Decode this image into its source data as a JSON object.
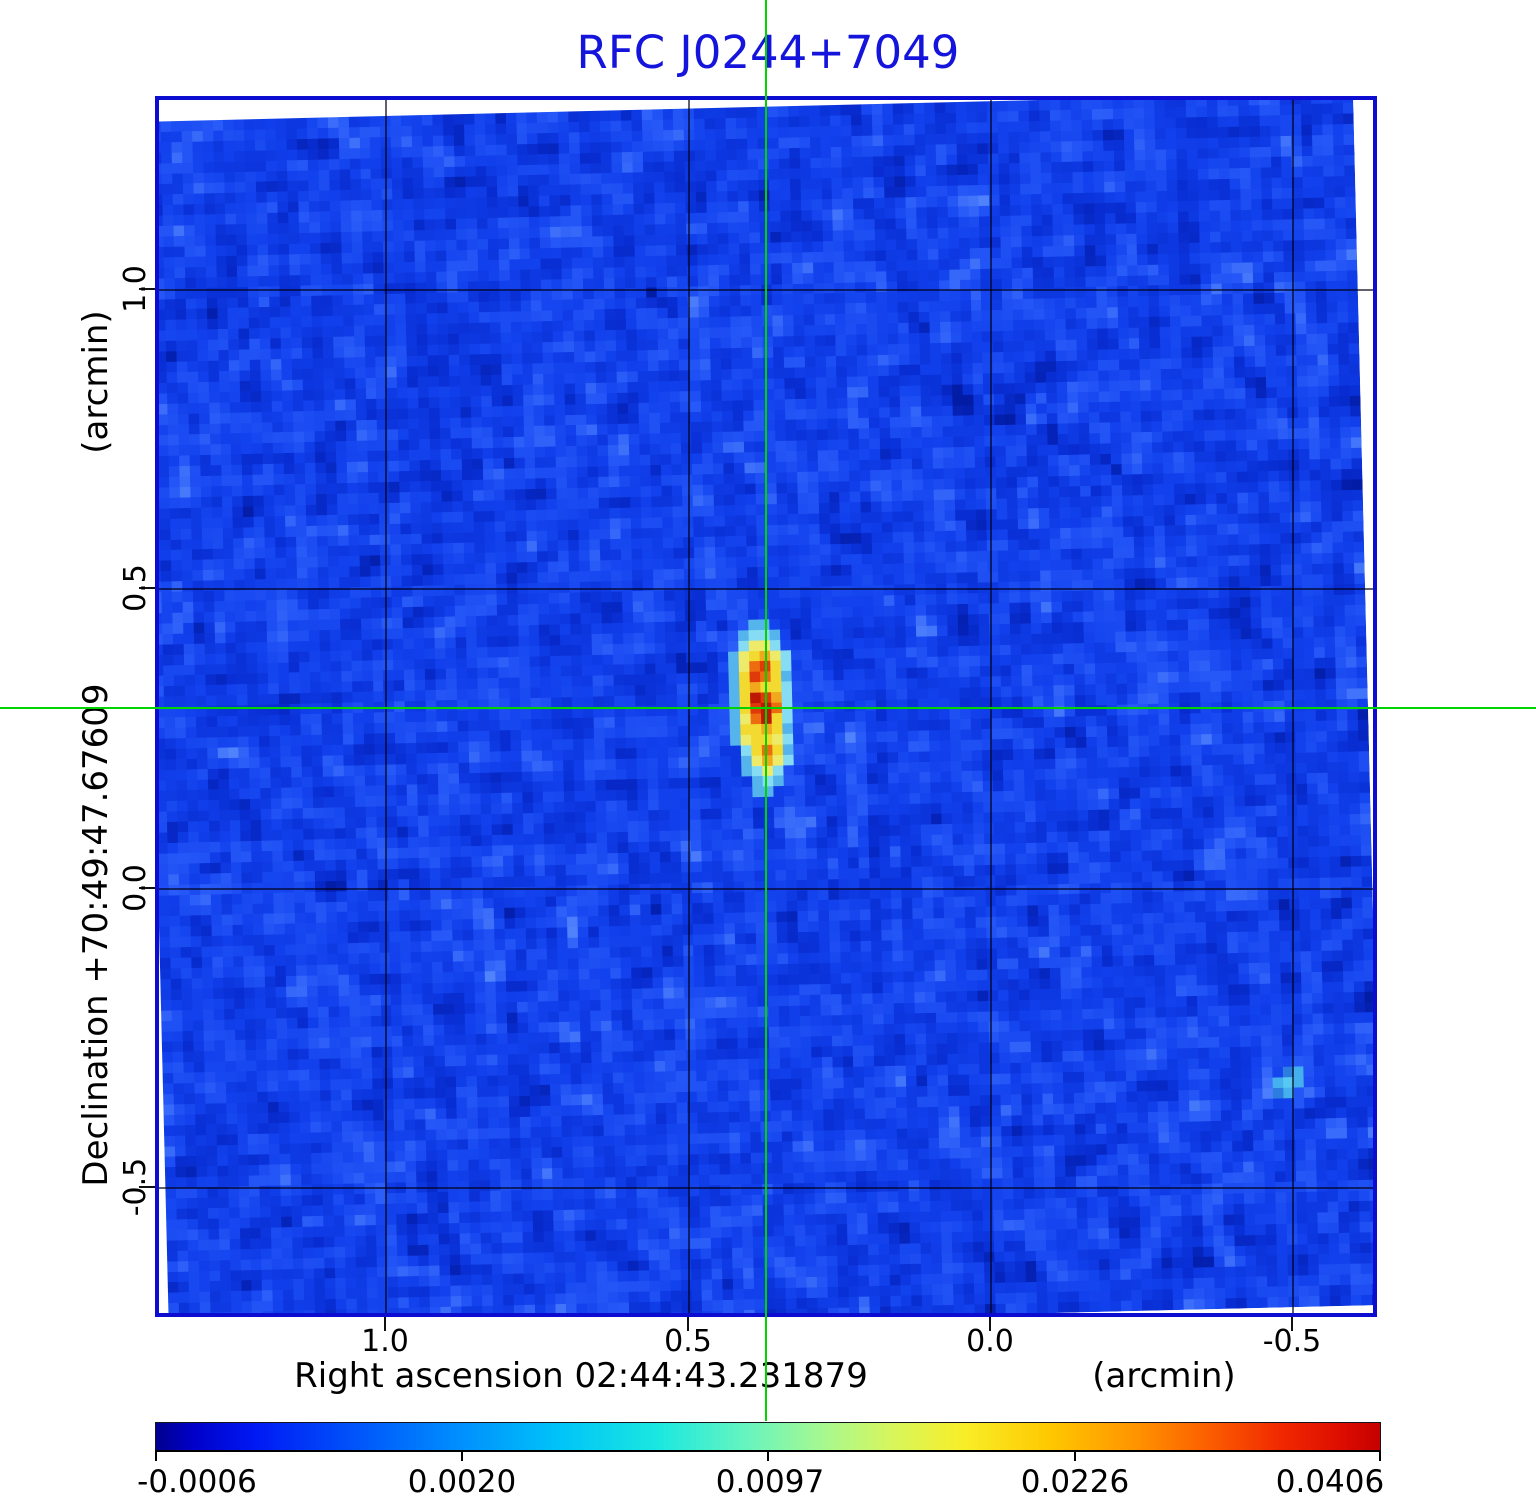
{
  "title": "RFC J0244+7049",
  "plot": {
    "x_axis": {
      "name": "Right ascension",
      "value": "02:44:43.231879",
      "label": "Right ascension  02:44:43.231879",
      "unit": "(arcmin)",
      "ticks": [
        "1.0",
        "0.5",
        "0.0",
        "-0.5"
      ]
    },
    "y_axis": {
      "name": "Declination",
      "value": "+70:49:47.67609",
      "label": "Declination  +70:49:47.67609",
      "unit": "(arcmin)",
      "ticks": [
        "1.0",
        "0.5",
        "0.0",
        "-0.5"
      ]
    }
  },
  "colorbar": {
    "tick_labels": [
      "-0.0006",
      "0.0020",
      "0.0097",
      "0.0226",
      "0.0406"
    ]
  },
  "colors": {
    "title_blue": "#1414dd",
    "frame_blue": "#0d0dd2",
    "crosshair_green": "#00d400",
    "grid_black": "#000014",
    "noise_base_blue": "#1140ec"
  },
  "chart_data": {
    "type": "heatmap",
    "title": "RFC J0244+7049",
    "xlabel": "Right ascension 02:44:43.231879 (arcmin)",
    "ylabel": "Declination +70:49:47.67609 (arcmin)",
    "x_ticks": [
      1.0,
      0.5,
      0.0,
      -0.5
    ],
    "y_ticks": [
      1.0,
      0.5,
      0.0,
      -0.5
    ],
    "xlim": [
      1.38,
      -0.64
    ],
    "ylim": [
      -0.71,
      1.32
    ],
    "x_axis_reversed": true,
    "grid": true,
    "colormap": "jet-like: dark blue > blue > cyan > yellow > orange > red",
    "colorbar_ticks": [
      -0.0006,
      0.002,
      0.0097,
      0.0226,
      0.0406
    ],
    "intensity_stretch": "non-linear power-law; colorbar ticks equally spaced",
    "crosshair_arcmin": {
      "x": 0.37,
      "y": 0.3
    },
    "features": [
      {
        "name": "central compact source",
        "x_arcmin": 0.37,
        "y_arcmin": 0.3,
        "peak_near": 0.0406,
        "shape": "vertically elongated ~0.12 x 0.28 arcmin, red/orange double core, yellow body, cyan halo"
      },
      {
        "name": "faint secondary blob",
        "x_arcmin": -0.48,
        "y_arcmin": -0.33,
        "level_near": 0.004
      },
      {
        "name": "faint dark sidelobe streaks",
        "region": "upper-right quadrant"
      },
      {
        "name": "background noise",
        "level_range": [
          -0.0006,
          0.003
        ]
      }
    ],
    "map_cells": 116,
    "palette": {
      "a": "#55b4ec",
      "b": "#86dcf2",
      "c": "#eeea6a",
      "d": "#f2da30",
      "e": "#f2a81c",
      "f": "#ee6c10",
      "g": "#e03a0a",
      "h": "#bd1806",
      "i": "#2b7ee0",
      "j": "#45b0ee",
      "k": "#58c8f2"
    },
    "source_pattern": {
      "origin_cell": [
        58,
        57
      ],
      "anchor": [
        3,
        8
      ],
      "rows": [
        "..aa...",
        ".abba..",
        ".bccb..",
        "acdecb.",
        "acfgdb.",
        "adgfda.",
        "adeddb.",
        "adhgeb.",
        "adghfb.",
        "acfhdb.",
        "addeda.",
        "acddcb.",
        ".bdfda.",
        ".acecb.",
        ".abcb..",
        "..aba..",
        "..aa..."
      ]
    },
    "secondary_blob_pattern": {
      "origin_cell": [
        107,
        94
      ],
      "anchor": [
        1,
        1
      ],
      "rows": [
        ".ij",
        "jkj",
        "ij."
      ]
    }
  }
}
